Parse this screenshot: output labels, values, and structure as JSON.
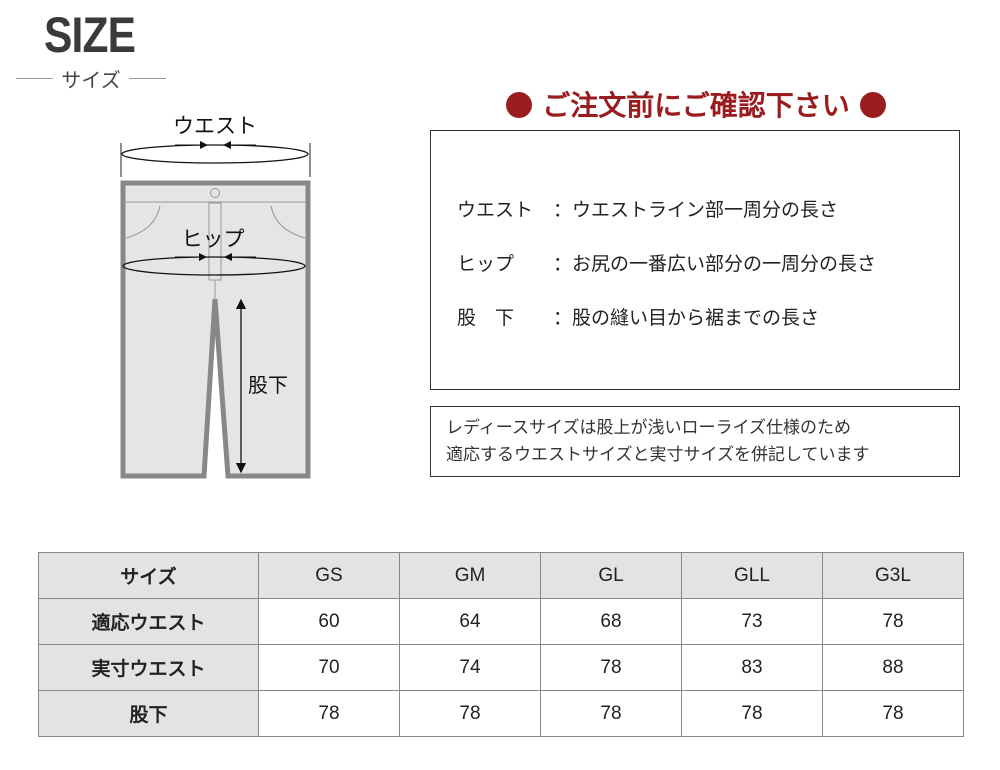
{
  "header": {
    "title": "SIZE",
    "subtitle": "サイズ"
  },
  "diagram": {
    "waist_label": "ウエスト",
    "hip_label": "ヒップ",
    "inseam_label": "股下"
  },
  "notice": {
    "title": "ご注文前にご確認下さい",
    "accent_color": "#9b1c1f",
    "definitions": [
      {
        "term": "ウエスト",
        "desc": "：ウエストライン部一周分の長さ"
      },
      {
        "term": "ヒップ",
        "desc": "：お尻の一番広い部分の一周分の長さ"
      },
      {
        "term": "股　下",
        "desc": "：股の縫い目から裾までの長さ"
      }
    ],
    "note_lines": [
      "レディースサイズは股上が浅いローライズ仕様のため",
      "適応するウエストサイズと実寸サイズを併記しています"
    ]
  },
  "table": {
    "header": [
      "サイズ",
      "GS",
      "GM",
      "GL",
      "GLL",
      "G3L"
    ],
    "rows": [
      {
        "label": "適応ウエスト",
        "values": [
          "60",
          "64",
          "68",
          "73",
          "78"
        ]
      },
      {
        "label": "実寸ウエスト",
        "values": [
          "70",
          "74",
          "78",
          "83",
          "88"
        ]
      },
      {
        "label": "股下",
        "values": [
          "78",
          "78",
          "78",
          "78",
          "78"
        ]
      }
    ]
  }
}
